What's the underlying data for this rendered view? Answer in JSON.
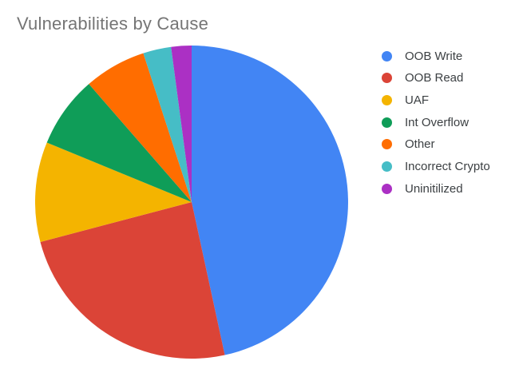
{
  "page": {
    "background": "#ffffff"
  },
  "chart_data": {
    "type": "pie",
    "title": "Vulnerabilities by Cause",
    "title_color": "#757575",
    "legend_position": "right",
    "legend_text_color": "#3c4043",
    "start_angle_deg": 0,
    "direction": "clockwise",
    "grid": false,
    "slices": [
      {
        "label": "OOB Write",
        "percent": 46.6,
        "color": "#4285F4"
      },
      {
        "label": "OOB Read",
        "percent": 24.3,
        "color": "#DB4437"
      },
      {
        "label": "UAF",
        "percent": 10.3,
        "color": "#F4B400"
      },
      {
        "label": "Int Overflow",
        "percent": 7.4,
        "color": "#0F9D58"
      },
      {
        "label": "Other",
        "percent": 6.4,
        "color": "#FF6D00"
      },
      {
        "label": "Incorrect Crypto",
        "percent": 2.9,
        "color": "#46BDC6"
      },
      {
        "label": "Uninitilized",
        "percent": 2.1,
        "color": "#AB30C4"
      }
    ]
  }
}
